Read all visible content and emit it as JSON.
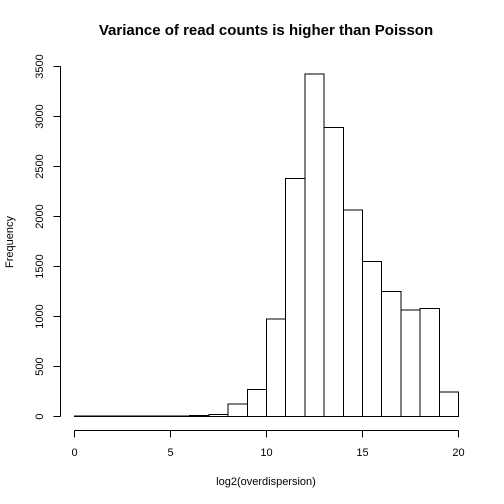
{
  "chart_data": {
    "type": "bar",
    "title": "Variance of read counts is higher than Poisson",
    "xlabel": "log2(overdispersion)",
    "ylabel": "Frequency",
    "xlim": [
      0,
      20
    ],
    "ylim": [
      0,
      3500
    ],
    "xticks": [
      0,
      5,
      10,
      15,
      20
    ],
    "yticks": [
      0,
      500,
      1000,
      1500,
      2000,
      2500,
      3000,
      3500
    ],
    "bins": [
      {
        "x0": 0,
        "x1": 1,
        "count": 5
      },
      {
        "x0": 1,
        "x1": 2,
        "count": 3
      },
      {
        "x0": 2,
        "x1": 3,
        "count": 3
      },
      {
        "x0": 3,
        "x1": 4,
        "count": 5
      },
      {
        "x0": 4,
        "x1": 5,
        "count": 3
      },
      {
        "x0": 5,
        "x1": 6,
        "count": 5
      },
      {
        "x0": 6,
        "x1": 7,
        "count": 8
      },
      {
        "x0": 7,
        "x1": 8,
        "count": 20
      },
      {
        "x0": 8,
        "x1": 9,
        "count": 125
      },
      {
        "x0": 9,
        "x1": 10,
        "count": 270
      },
      {
        "x0": 10,
        "x1": 11,
        "count": 975
      },
      {
        "x0": 11,
        "x1": 12,
        "count": 2380
      },
      {
        "x0": 12,
        "x1": 13,
        "count": 3425
      },
      {
        "x0": 13,
        "x1": 14,
        "count": 2890
      },
      {
        "x0": 14,
        "x1": 15,
        "count": 2065
      },
      {
        "x0": 15,
        "x1": 16,
        "count": 1550
      },
      {
        "x0": 16,
        "x1": 17,
        "count": 1250
      },
      {
        "x0": 17,
        "x1": 18,
        "count": 1065
      },
      {
        "x0": 18,
        "x1": 19,
        "count": 1080
      },
      {
        "x0": 19,
        "x1": 20,
        "count": 245
      }
    ]
  }
}
